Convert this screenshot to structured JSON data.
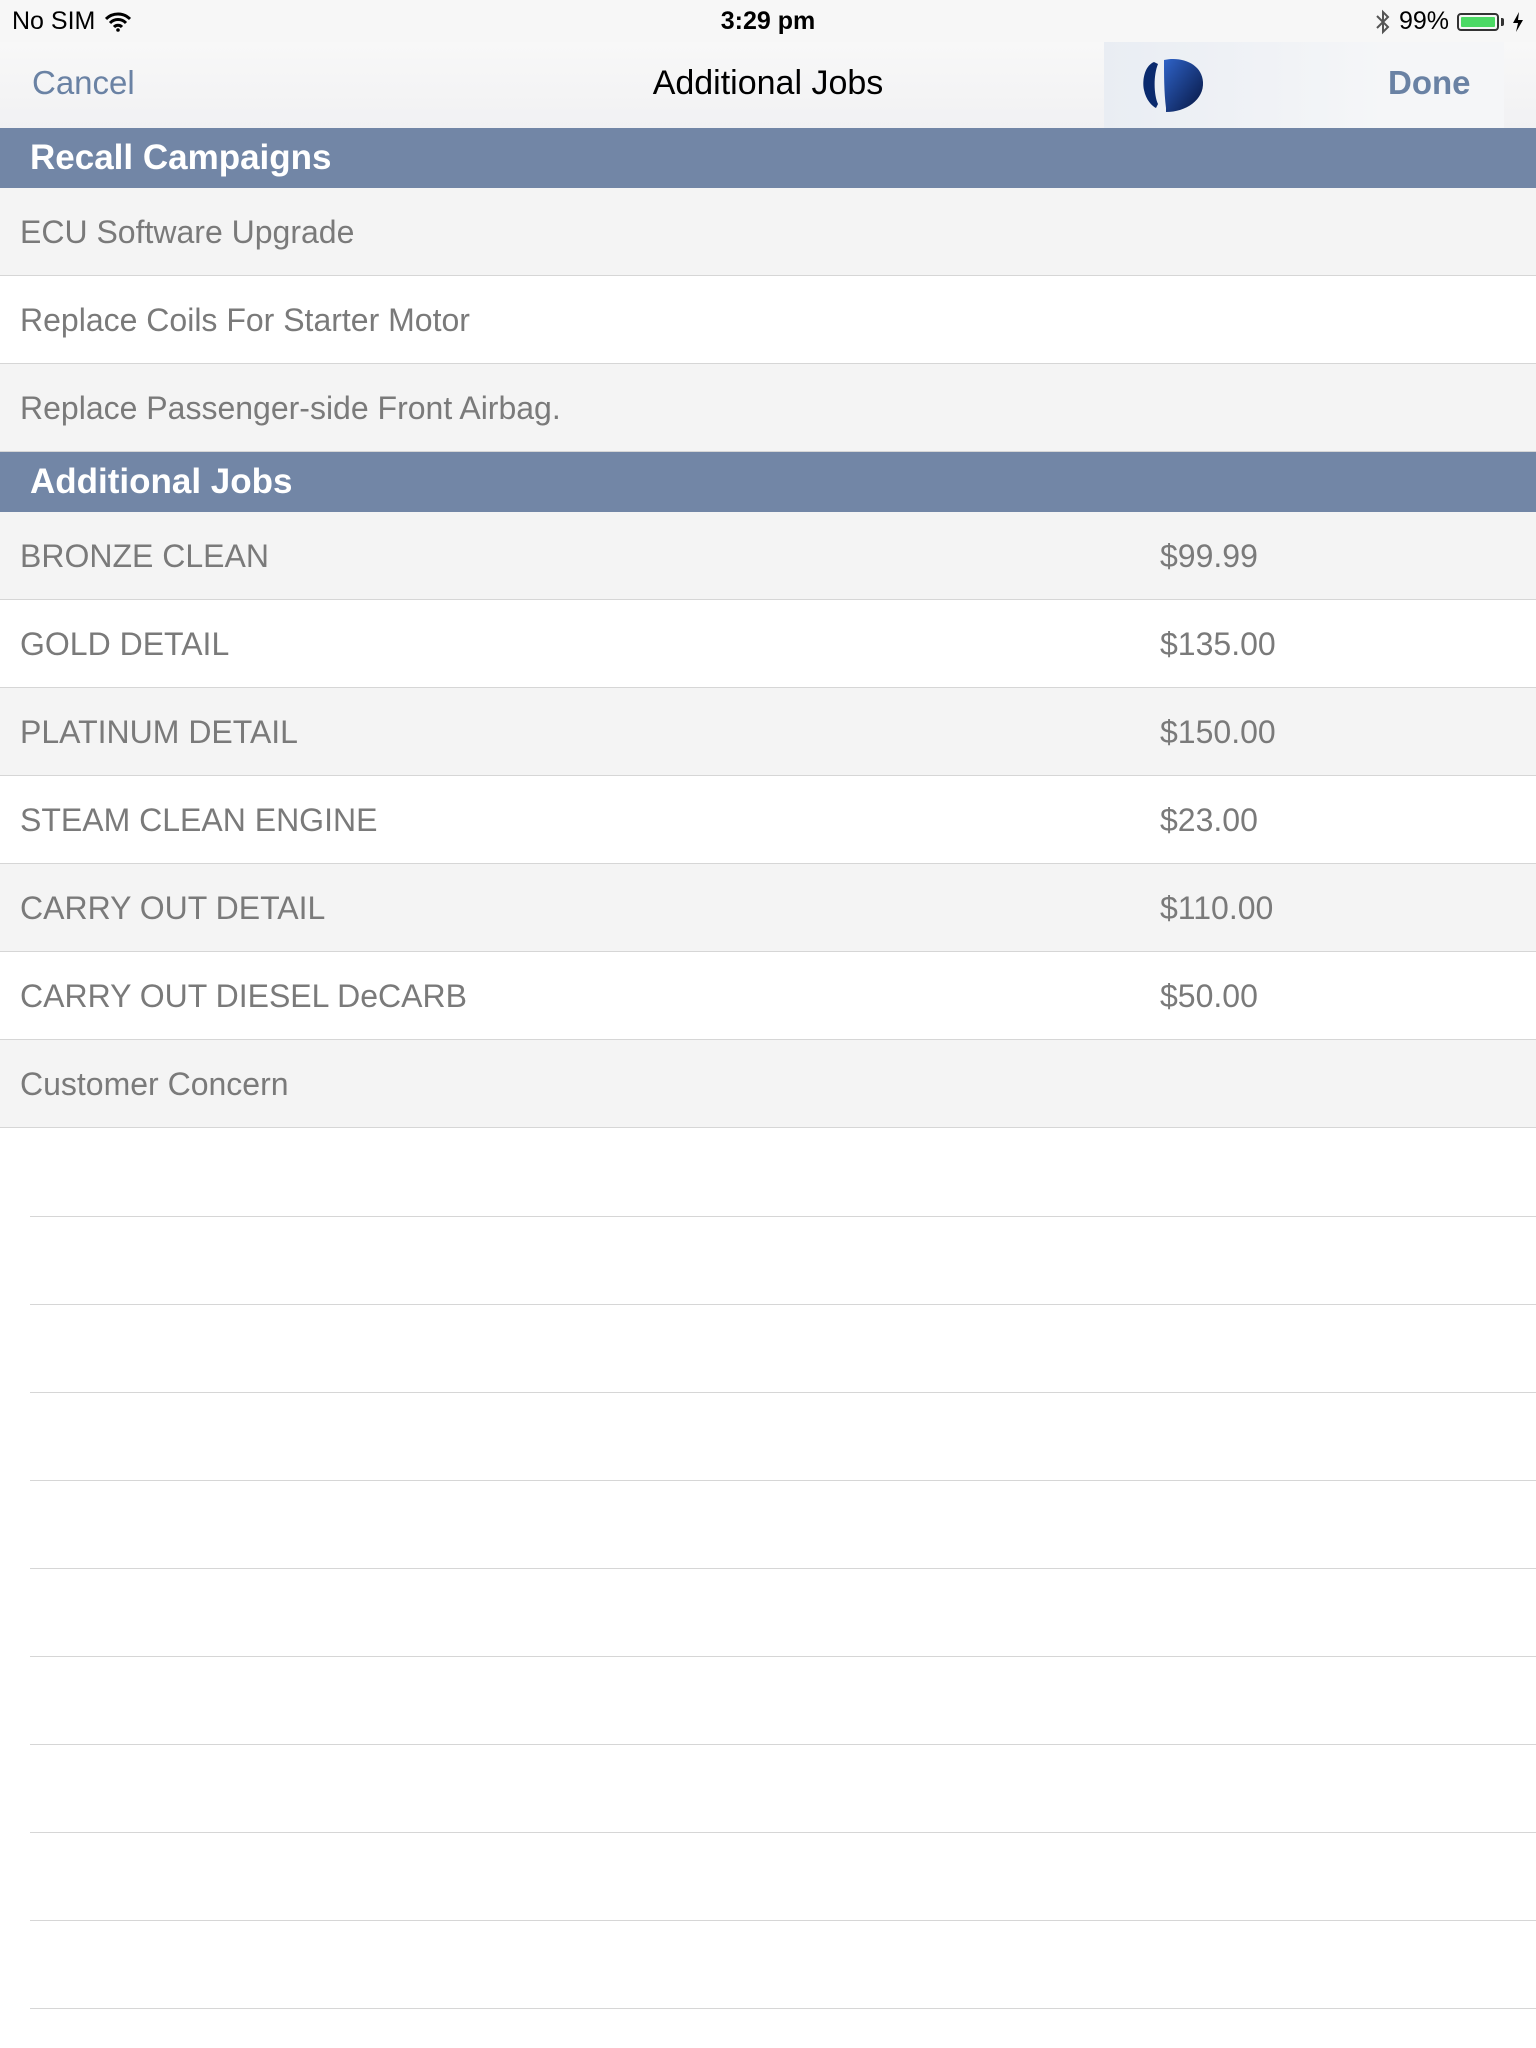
{
  "status_bar": {
    "carrier": "No SIM",
    "time": "3:29 pm",
    "battery_percent": "99%",
    "battery_level": 0.99
  },
  "nav_bar": {
    "cancel_label": "Cancel",
    "title": "Additional Jobs",
    "done_label": "Done"
  },
  "sections": {
    "recall": {
      "header": "Recall Campaigns",
      "items": [
        {
          "label": "ECU Software Upgrade"
        },
        {
          "label": "Replace Coils For Starter Motor"
        },
        {
          "label": "Replace Passenger-side Front Airbag."
        }
      ]
    },
    "jobs": {
      "header": "Additional Jobs",
      "items": [
        {
          "label": "BRONZE CLEAN",
          "price": "$99.99"
        },
        {
          "label": "GOLD DETAIL",
          "price": "$135.00"
        },
        {
          "label": "PLATINUM DETAIL",
          "price": "$150.00"
        },
        {
          "label": "STEAM CLEAN ENGINE",
          "price": "$23.00"
        },
        {
          "label": "CARRY OUT DETAIL",
          "price": "$110.00"
        },
        {
          "label": "CARRY OUT DIESEL DeCARB",
          "price": "$50.00"
        },
        {
          "label": "Customer Concern",
          "price": ""
        }
      ]
    }
  },
  "colors": {
    "section_header_bg": "#7286a6",
    "nav_button": "#6a82a4",
    "battery_fill": "#4cd964"
  }
}
